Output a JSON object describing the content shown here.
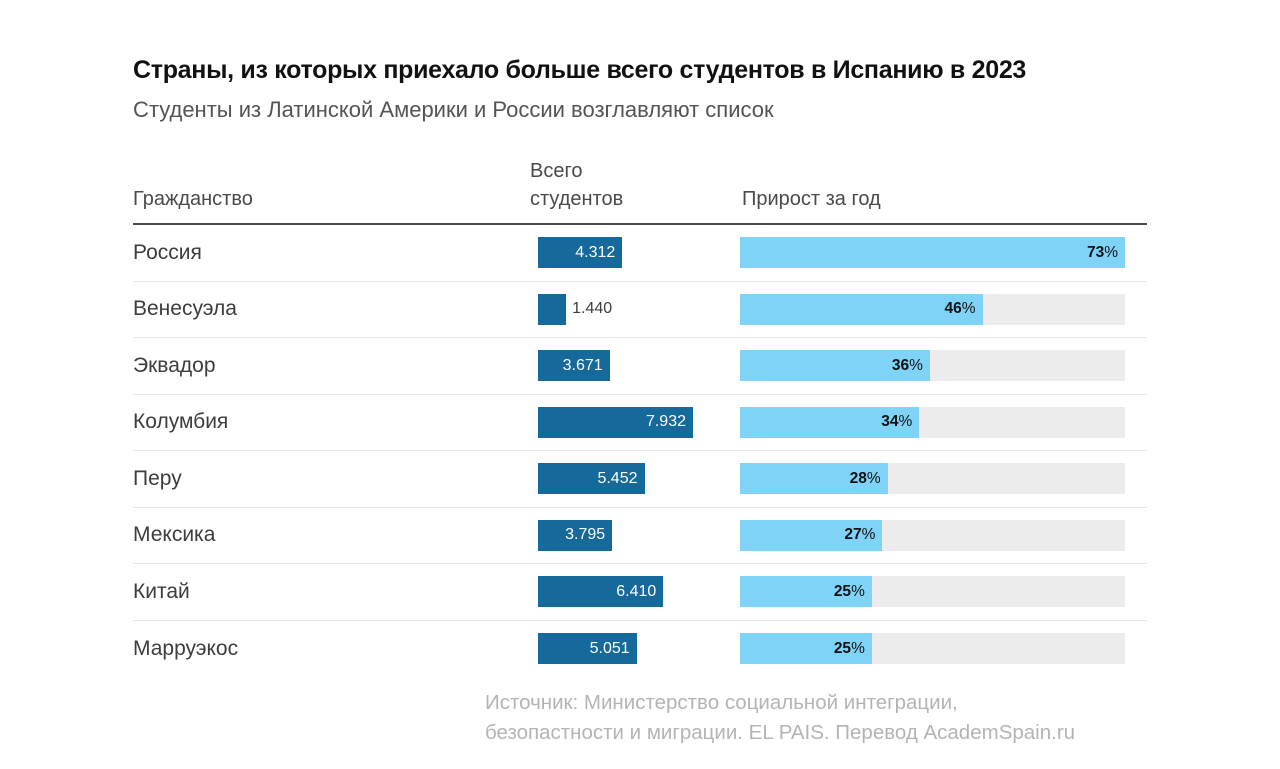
{
  "header": {
    "title": "Страны, из которых приехало больше всего студентов в Испанию в 2023",
    "subtitle": "Студенты из Латинской Америки и России возглавляют список"
  },
  "table": {
    "columns": {
      "country": "Гражданство",
      "students_line1": "Всего",
      "students_line2": "студентов",
      "growth": "Прирост за год"
    }
  },
  "rows": [
    {
      "country": "Россия",
      "students": 4312,
      "students_label": "4.312",
      "growth_pct": 73,
      "growth_label": "73%"
    },
    {
      "country": "Венесуэла",
      "students": 1440,
      "students_label": "1.440",
      "growth_pct": 46,
      "growth_label": "46%"
    },
    {
      "country": "Эквадор",
      "students": 3671,
      "students_label": "3.671",
      "growth_pct": 36,
      "growth_label": "36%"
    },
    {
      "country": "Колумбия",
      "students": 7932,
      "students_label": "7.932",
      "growth_pct": 34,
      "growth_label": "34%"
    },
    {
      "country": "Перу",
      "students": 5452,
      "students_label": "5.452",
      "growth_pct": 28,
      "growth_label": "28%"
    },
    {
      "country": "Мексика",
      "students": 3795,
      "students_label": "3.795",
      "growth_pct": 27,
      "growth_label": "27%"
    },
    {
      "country": "Китай",
      "students": 6410,
      "students_label": "6.410",
      "growth_pct": 25,
      "growth_label": "25%"
    },
    {
      "country": "Марруэкос",
      "students": 5051,
      "students_label": "5.051",
      "growth_pct": 25,
      "growth_label": "25%"
    }
  ],
  "source": {
    "line1": "Источник: Министерство социальной интеграции,",
    "line2": "безопастности и миграции. EL PAIS. Перевод AcademSpain.ru"
  },
  "colors": {
    "dark_bar": "#16699B",
    "light_bar": "#7ED3F7",
    "track": "#ECECEC"
  },
  "chart_data": {
    "type": "bar",
    "orientation": "horizontal",
    "title": "Страны, из которых приехало больше всего студентов в Испанию в 2023",
    "subtitle": "Студенты из Латинской Америки и России возглавляют список",
    "categories": [
      "Россия",
      "Венесуэла",
      "Эквадор",
      "Колумбия",
      "Перу",
      "Мексика",
      "Китай",
      "Марруэкос"
    ],
    "series": [
      {
        "name": "Всего студентов",
        "values": [
          4312,
          1440,
          3671,
          7932,
          5452,
          3795,
          6410,
          5051
        ]
      },
      {
        "name": "Прирост за год (%)",
        "values": [
          73,
          46,
          36,
          34,
          28,
          27,
          25,
          25
        ]
      }
    ],
    "value_labels": [
      "4.312",
      "1.440",
      "3.671",
      "7.932",
      "5.452",
      "3.795",
      "6.410",
      "5.051"
    ],
    "growth_labels": [
      "73%",
      "46%",
      "36%",
      "34%",
      "28%",
      "27%",
      "25%",
      "25%"
    ],
    "growth_axis_max": 73,
    "grid": false,
    "legend": false,
    "source": "Источник: Министерство социальной интеграции, безопастности и миграции. EL PAIS. Перевод AcademSpain.ru"
  }
}
